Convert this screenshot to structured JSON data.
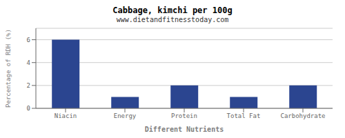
{
  "chart_data": {
    "type": "bar",
    "title": "Cabbage, kimchi per 100g",
    "subtitle": "www.dietandfitnesstoday.com",
    "xlabel": "Different Nutrients",
    "ylabel": "Percentage of RDH (%)",
    "categories": [
      "Niacin",
      "Energy",
      "Protein",
      "Total Fat",
      "Carbohydrate"
    ],
    "values": [
      6.0,
      1.0,
      2.0,
      1.0,
      2.0
    ],
    "color": "#2b4590",
    "ylim": [
      0,
      7
    ],
    "yticks": [
      0,
      2,
      4,
      6
    ],
    "grid": true
  }
}
